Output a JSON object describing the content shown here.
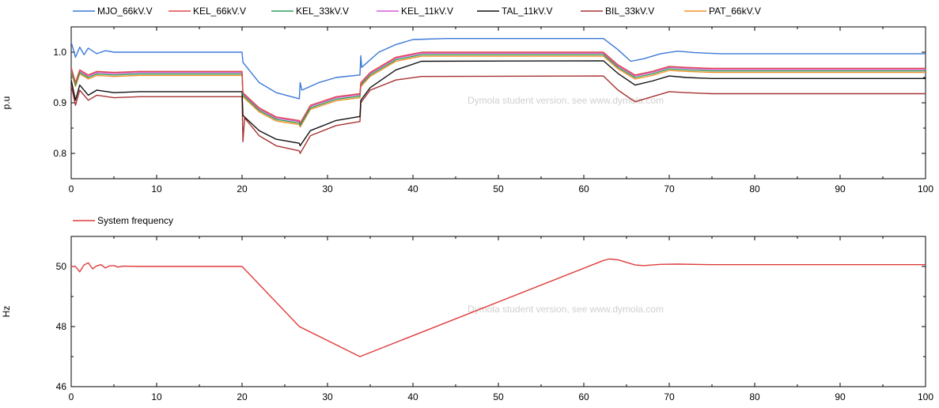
{
  "watermark": "Dymola student version, see www.dymola.com",
  "chart_data": [
    {
      "type": "line",
      "ylabel": "p.u",
      "xlim": [
        0,
        100
      ],
      "ylim": [
        0.75,
        1.05
      ],
      "xticks": [
        "0",
        "10",
        "20",
        "30",
        "40",
        "50",
        "60",
        "70",
        "80",
        "90",
        "100"
      ],
      "yticks": [
        "0.8",
        "0.9",
        "1.0"
      ],
      "ytick_values": [
        0.8,
        0.9,
        1.0
      ],
      "series": [
        {
          "name": "MJO_66kV.V",
          "color": "#3b78d8",
          "points": [
            [
              0,
              1.02
            ],
            [
              0.5,
              0.99
            ],
            [
              1,
              1.01
            ],
            [
              1.5,
              0.995
            ],
            [
              2,
              1.008
            ],
            [
              3,
              0.997
            ],
            [
              4,
              1.003
            ],
            [
              5,
              1.0
            ],
            [
              8,
              1.0
            ],
            [
              20,
              1.0
            ],
            [
              20.1,
              0.98
            ],
            [
              22,
              0.94
            ],
            [
              24,
              0.92
            ],
            [
              26.7,
              0.908
            ],
            [
              26.8,
              0.94
            ],
            [
              27,
              0.925
            ],
            [
              29,
              0.94
            ],
            [
              31,
              0.95
            ],
            [
              33.8,
              0.955
            ],
            [
              33.9,
              0.993
            ],
            [
              34,
              0.97
            ],
            [
              36,
              1.0
            ],
            [
              38,
              1.015
            ],
            [
              40,
              1.025
            ],
            [
              44,
              1.027
            ],
            [
              62.3,
              1.027
            ],
            [
              64,
              1.005
            ],
            [
              65.5,
              0.982
            ],
            [
              67,
              0.987
            ],
            [
              69,
              0.997
            ],
            [
              71,
              1.002
            ],
            [
              73,
              0.999
            ],
            [
              76,
              0.997
            ],
            [
              100,
              0.997
            ]
          ]
        },
        {
          "name": "KEL_66kV.V",
          "color": "#e04a4a",
          "points": [
            [
              0,
              0.97
            ],
            [
              0.5,
              0.94
            ],
            [
              1,
              0.965
            ],
            [
              2,
              0.955
            ],
            [
              3,
              0.962
            ],
            [
              5,
              0.96
            ],
            [
              8,
              0.962
            ],
            [
              20,
              0.962
            ],
            [
              20.1,
              0.92
            ],
            [
              22,
              0.89
            ],
            [
              24,
              0.872
            ],
            [
              26.7,
              0.865
            ],
            [
              26.8,
              0.86
            ],
            [
              28,
              0.895
            ],
            [
              31,
              0.912
            ],
            [
              33.8,
              0.918
            ],
            [
              33.9,
              0.94
            ],
            [
              35,
              0.96
            ],
            [
              38,
              0.99
            ],
            [
              41,
              1.0
            ],
            [
              62.3,
              1.0
            ],
            [
              64,
              0.975
            ],
            [
              66,
              0.955
            ],
            [
              68,
              0.962
            ],
            [
              70,
              0.972
            ],
            [
              72,
              0.97
            ],
            [
              75,
              0.968
            ],
            [
              100,
              0.968
            ]
          ]
        },
        {
          "name": "KEL_33kV.V",
          "color": "#2f9e5a",
          "points": [
            [
              0,
              0.965
            ],
            [
              0.5,
              0.935
            ],
            [
              1,
              0.96
            ],
            [
              2,
              0.95
            ],
            [
              3,
              0.957
            ],
            [
              5,
              0.955
            ],
            [
              8,
              0.957
            ],
            [
              20,
              0.957
            ],
            [
              20.1,
              0.915
            ],
            [
              22,
              0.885
            ],
            [
              24,
              0.867
            ],
            [
              26.7,
              0.86
            ],
            [
              26.8,
              0.855
            ],
            [
              28,
              0.89
            ],
            [
              31,
              0.907
            ],
            [
              33.8,
              0.913
            ],
            [
              33.9,
              0.935
            ],
            [
              35,
              0.955
            ],
            [
              38,
              0.985
            ],
            [
              41,
              0.995
            ],
            [
              62.3,
              0.995
            ],
            [
              64,
              0.97
            ],
            [
              66,
              0.95
            ],
            [
              68,
              0.957
            ],
            [
              70,
              0.967
            ],
            [
              72,
              0.965
            ],
            [
              75,
              0.963
            ],
            [
              100,
              0.963
            ]
          ]
        },
        {
          "name": "KEL_11kV.V",
          "color": "#d65ad6",
          "points": [
            [
              0,
              0.968
            ],
            [
              0.5,
              0.938
            ],
            [
              1,
              0.963
            ],
            [
              2,
              0.953
            ],
            [
              3,
              0.96
            ],
            [
              5,
              0.958
            ],
            [
              8,
              0.96
            ],
            [
              20,
              0.96
            ],
            [
              20.1,
              0.918
            ],
            [
              22,
              0.888
            ],
            [
              24,
              0.87
            ],
            [
              26.7,
              0.863
            ],
            [
              26.8,
              0.858
            ],
            [
              28,
              0.893
            ],
            [
              31,
              0.91
            ],
            [
              33.8,
              0.916
            ],
            [
              33.9,
              0.938
            ],
            [
              35,
              0.958
            ],
            [
              38,
              0.988
            ],
            [
              41,
              0.998
            ],
            [
              62.3,
              0.998
            ],
            [
              64,
              0.973
            ],
            [
              66,
              0.953
            ],
            [
              68,
              0.96
            ],
            [
              70,
              0.97
            ],
            [
              72,
              0.968
            ],
            [
              75,
              0.966
            ],
            [
              100,
              0.966
            ]
          ]
        },
        {
          "name": "TAL_11kV.V",
          "color": "#111111",
          "points": [
            [
              0,
              0.945
            ],
            [
              0.5,
              0.905
            ],
            [
              1,
              0.935
            ],
            [
              2,
              0.915
            ],
            [
              3,
              0.925
            ],
            [
              5,
              0.92
            ],
            [
              8,
              0.922
            ],
            [
              20,
              0.922
            ],
            [
              20.1,
              0.875
            ],
            [
              22,
              0.845
            ],
            [
              24,
              0.828
            ],
            [
              26.7,
              0.82
            ],
            [
              26.8,
              0.815
            ],
            [
              28,
              0.845
            ],
            [
              31,
              0.865
            ],
            [
              33.8,
              0.873
            ],
            [
              33.9,
              0.905
            ],
            [
              35,
              0.93
            ],
            [
              38,
              0.965
            ],
            [
              41,
              0.982
            ],
            [
              62.3,
              0.983
            ],
            [
              64,
              0.958
            ],
            [
              66,
              0.935
            ],
            [
              68,
              0.943
            ],
            [
              70,
              0.953
            ],
            [
              72,
              0.95
            ],
            [
              75,
              0.948
            ],
            [
              100,
              0.948
            ]
          ]
        },
        {
          "name": "BIL_33kV.V",
          "color": "#a83232",
          "points": [
            [
              0,
              0.935
            ],
            [
              0.5,
              0.895
            ],
            [
              1,
              0.925
            ],
            [
              2,
              0.905
            ],
            [
              3,
              0.915
            ],
            [
              5,
              0.91
            ],
            [
              8,
              0.912
            ],
            [
              20,
              0.912
            ],
            [
              20.1,
              0.823
            ],
            [
              20.3,
              0.87
            ],
            [
              22,
              0.835
            ],
            [
              24,
              0.815
            ],
            [
              26.7,
              0.805
            ],
            [
              26.8,
              0.8
            ],
            [
              28,
              0.835
            ],
            [
              31,
              0.855
            ],
            [
              33.8,
              0.863
            ],
            [
              33.9,
              0.9
            ],
            [
              35,
              0.925
            ],
            [
              38,
              0.945
            ],
            [
              41,
              0.952
            ],
            [
              62.3,
              0.953
            ],
            [
              64,
              0.925
            ],
            [
              66,
              0.902
            ],
            [
              68,
              0.912
            ],
            [
              70,
              0.922
            ],
            [
              72,
              0.92
            ],
            [
              75,
              0.918
            ],
            [
              100,
              0.918
            ]
          ]
        },
        {
          "name": "PAT_66kV.V",
          "color": "#f0922b",
          "points": [
            [
              0,
              0.962
            ],
            [
              0.5,
              0.932
            ],
            [
              1,
              0.957
            ],
            [
              2,
              0.947
            ],
            [
              3,
              0.954
            ],
            [
              5,
              0.952
            ],
            [
              8,
              0.954
            ],
            [
              20,
              0.954
            ],
            [
              20.1,
              0.912
            ],
            [
              22,
              0.882
            ],
            [
              24,
              0.864
            ],
            [
              26.7,
              0.857
            ],
            [
              26.8,
              0.852
            ],
            [
              28,
              0.887
            ],
            [
              31,
              0.904
            ],
            [
              33.8,
              0.91
            ],
            [
              33.9,
              0.932
            ],
            [
              35,
              0.952
            ],
            [
              38,
              0.982
            ],
            [
              41,
              0.992
            ],
            [
              62.3,
              0.992
            ],
            [
              64,
              0.967
            ],
            [
              66,
              0.947
            ],
            [
              68,
              0.954
            ],
            [
              70,
              0.964
            ],
            [
              72,
              0.962
            ],
            [
              75,
              0.96
            ],
            [
              100,
              0.96
            ]
          ]
        }
      ]
    },
    {
      "type": "line",
      "ylabel": "Hz",
      "xlim": [
        0,
        100
      ],
      "ylim": [
        46,
        51
      ],
      "xticks": [
        "0",
        "10",
        "20",
        "30",
        "40",
        "50",
        "60",
        "70",
        "80",
        "90",
        "100"
      ],
      "yticks": [
        "46",
        "48",
        "50"
      ],
      "ytick_values": [
        46,
        48,
        50
      ],
      "series": [
        {
          "name": "System frequency",
          "color": "#e03c3c",
          "points": [
            [
              0,
              50.0
            ],
            [
              0.5,
              50.0
            ],
            [
              1,
              49.82
            ],
            [
              1.5,
              50.05
            ],
            [
              2,
              50.12
            ],
            [
              2.5,
              49.92
            ],
            [
              3,
              50.02
            ],
            [
              3.5,
              50.06
            ],
            [
              4,
              49.95
            ],
            [
              4.5,
              50.02
            ],
            [
              5,
              50.03
            ],
            [
              5.5,
              49.98
            ],
            [
              6,
              50.01
            ],
            [
              8,
              50.0
            ],
            [
              20,
              50.0
            ],
            [
              26.7,
              48.0
            ],
            [
              33.8,
              47.0
            ],
            [
              62.3,
              50.2
            ],
            [
              63,
              50.25
            ],
            [
              64,
              50.22
            ],
            [
              66,
              50.05
            ],
            [
              67,
              50.03
            ],
            [
              69,
              50.07
            ],
            [
              71,
              50.08
            ],
            [
              75,
              50.06
            ],
            [
              100,
              50.06
            ]
          ]
        }
      ]
    }
  ]
}
